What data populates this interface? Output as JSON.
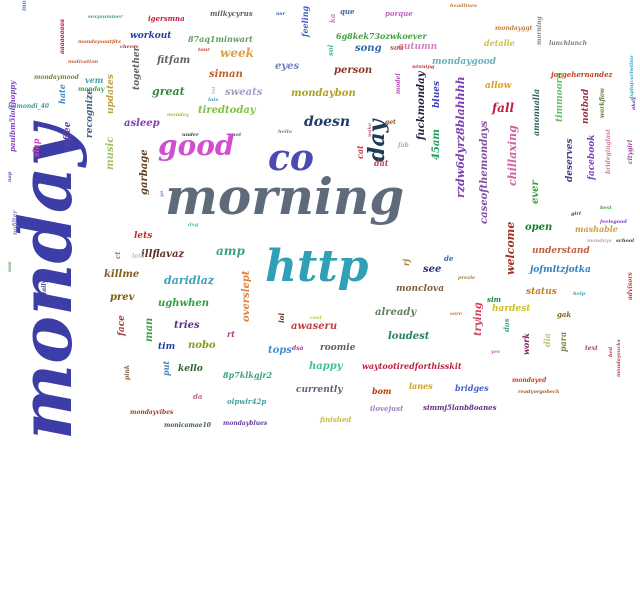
{
  "words": [
    {
      "text": "monday",
      "color": "#3d3da8"
    },
    {
      "text": "morning",
      "color": "#5f6b7a"
    },
    {
      "text": "http",
      "color": "#2fa0b5"
    },
    {
      "text": "co",
      "color": "#4a4ab0"
    },
    {
      "text": "good",
      "color": "#cf4fd0"
    },
    {
      "text": "day",
      "color": "#1c3d5a"
    },
    {
      "text": "doesn",
      "color": "#1c3a6a"
    },
    {
      "text": "week",
      "color": "#d8a048"
    },
    {
      "text": "person",
      "color": "#8a3a2a"
    },
    {
      "text": "song",
      "color": "#2a6ab0"
    },
    {
      "text": "autumn",
      "color": "#d080c0"
    },
    {
      "text": "mondaygood",
      "color": "#6ab0c0"
    },
    {
      "text": "mondaybon",
      "color": "#b0a020"
    },
    {
      "text": "eyes",
      "color": "#7080c0"
    },
    {
      "text": "fitfam",
      "color": "#606060"
    },
    {
      "text": "great",
      "color": "#3a8a3a"
    },
    {
      "text": "sweats",
      "color": "#a0a0c0"
    },
    {
      "text": "tiredtoday",
      "color": "#80c040"
    },
    {
      "text": "asleep",
      "color": "#8040b0"
    },
    {
      "text": "siman",
      "color": "#c06020"
    },
    {
      "text": "workout",
      "color": "#2040a0"
    },
    {
      "text": "fall",
      "color": "#c02040"
    },
    {
      "text": "blues",
      "color": "#4040c0"
    },
    {
      "text": "allow",
      "color": "#e0a020"
    },
    {
      "text": "detalle",
      "color": "#d0c040"
    },
    {
      "text": "welcome",
      "color": "#a03020"
    },
    {
      "text": "open",
      "color": "#108030"
    },
    {
      "text": "understand",
      "color": "#c06040"
    },
    {
      "text": "jofmltzjotka",
      "color": "#3080c0"
    },
    {
      "text": "status",
      "color": "#c08020"
    },
    {
      "text": "hardest",
      "color": "#d0c020"
    },
    {
      "text": "see",
      "color": "#303080"
    },
    {
      "text": "monclova",
      "color": "#806040"
    },
    {
      "text": "already",
      "color": "#608060"
    },
    {
      "text": "loudest",
      "color": "#208060"
    },
    {
      "text": "awaseru",
      "color": "#c04040"
    },
    {
      "text": "roomie",
      "color": "#606060"
    },
    {
      "text": "waytootiredforthisskit",
      "color": "#c02040"
    },
    {
      "text": "amp",
      "color": "#40a080"
    },
    {
      "text": "daridlaz",
      "color": "#40a0c0"
    },
    {
      "text": "ughwhen",
      "color": "#30a040"
    },
    {
      "text": "killme",
      "color": "#806020"
    },
    {
      "text": "prev",
      "color": "#806000"
    },
    {
      "text": "lets",
      "color": "#c03020"
    },
    {
      "text": "illflavaz",
      "color": "#603020"
    },
    {
      "text": "tries",
      "color": "#603080"
    },
    {
      "text": "nobo",
      "color": "#80a020"
    },
    {
      "text": "kello",
      "color": "#306030"
    },
    {
      "text": "tim",
      "color": "#2040a0"
    },
    {
      "text": "tops",
      "color": "#4090d0"
    },
    {
      "text": "happy",
      "color": "#40c0a0"
    },
    {
      "text": "currently",
      "color": "#606080"
    },
    {
      "text": "bom",
      "color": "#c03000"
    },
    {
      "text": "lanes",
      "color": "#d0a020"
    },
    {
      "text": "bridges",
      "color": "#4060c0"
    },
    {
      "text": "ilovejust",
      "color": "#a080c0"
    },
    {
      "text": "simmj5lanb8oanes",
      "color": "#603080"
    },
    {
      "text": "8p7klkgjr2",
      "color": "#40a080"
    },
    {
      "text": "olpwlr42p",
      "color": "#40a0a0"
    },
    {
      "text": "finished",
      "color": "#c0c040"
    },
    {
      "text": "mondayed",
      "color": "#c04020"
    },
    {
      "text": "caseofthemondays",
      "color": "#8050a0"
    },
    {
      "text": "rzdw6dyrz8blahhhh",
      "color": "#8040b0"
    },
    {
      "text": "fuckmonday",
      "color": "#202040"
    },
    {
      "text": "45am",
      "color": "#20a060"
    },
    {
      "text": "chillaxing",
      "color": "#d060a0"
    },
    {
      "text": "ever",
      "color": "#40a040"
    },
    {
      "text": "deserves",
      "color": "#404080"
    },
    {
      "text": "facebook",
      "color": "#8040c0"
    },
    {
      "text": "notbad",
      "color": "#a03040"
    },
    {
      "text": "timmoore",
      "color": "#60c060"
    },
    {
      "text": "amonualla",
      "color": "#306060"
    },
    {
      "text": "mashable",
      "color": "#d0a040"
    },
    {
      "text": "overslept",
      "color": "#e08040"
    },
    {
      "text": "trying",
      "color": "#d04060"
    },
    {
      "text": "jorgehernandez",
      "color": "#c04020"
    },
    {
      "text": "6g8kek73ozwkoever",
      "color": "#40a040"
    },
    {
      "text": "87aq1minwart",
      "color": "#60a060"
    },
    {
      "text": "milkycyrus",
      "color": "#606060"
    },
    {
      "text": "igersmna",
      "color": "#c02040"
    },
    {
      "text": "porque",
      "color": "#c060c0"
    },
    {
      "text": "feeling",
      "color": "#4060c0"
    },
    {
      "text": "mondayggt",
      "color": "#c08040"
    },
    {
      "text": "recognize",
      "color": "#406080"
    },
    {
      "text": "coffee",
      "color": "#6040a0"
    },
    {
      "text": "music",
      "color": "#a0c060"
    },
    {
      "text": "garbage",
      "color": "#604020"
    },
    {
      "text": "updates",
      "color": "#c0a040"
    },
    {
      "text": "together",
      "color": "#606060"
    },
    {
      "text": "vem",
      "color": "#40a0a0"
    },
    {
      "text": "slap",
      "color": "#d040c0"
    },
    {
      "text": "man",
      "color": "#40a040"
    },
    {
      "text": "face",
      "color": "#a04040"
    },
    {
      "text": "work",
      "color": "#802060"
    },
    {
      "text": "dia",
      "color": "#c0c080"
    },
    {
      "text": "para",
      "color": "#808040"
    },
    {
      "text": "cat",
      "color": "#c04040"
    },
    {
      "text": "lol",
      "color": "#603020"
    },
    {
      "text": "rt",
      "color": "#a04080"
    },
    {
      "text": "put",
      "color": "#4080c0"
    },
    {
      "text": "da",
      "color": "#c06080"
    },
    {
      "text": "dos",
      "color": "#40a080"
    },
    {
      "text": "gak",
      "color": "#806020"
    },
    {
      "text": "sol",
      "color": "#40c080"
    },
    {
      "text": "ka",
      "color": "#c080c0"
    },
    {
      "text": "que",
      "color": "#4060a0"
    },
    {
      "text": "rj",
      "color": "#a08040"
    },
    {
      "text": "de",
      "color": "#4060c0"
    },
    {
      "text": "dat",
      "color": "#c04060"
    },
    {
      "text": "sou",
      "color": "#c06040"
    },
    {
      "text": "sim",
      "color": "#208040"
    },
    {
      "text": "dsa",
      "color": "#a040a0"
    },
    {
      "text": "ct",
      "color": "#a08060"
    },
    {
      "text": "lets",
      "color": "#c0c0c0"
    },
    {
      "text": "nofilter",
      "color": "#8080c0"
    },
    {
      "text": "mondayvibes",
      "color": "#a04020"
    },
    {
      "text": "readyorgobeck",
      "color": "#a06020"
    },
    {
      "text": "mondaymotivation",
      "color": "#6080c0"
    },
    {
      "text": "mondayblues",
      "color": "#6040a0"
    },
    {
      "text": "monicamae10",
      "color": "#406040"
    },
    {
      "text": "pink",
      "color": "#806040"
    },
    {
      "text": "workflow",
      "color": "#608040"
    },
    {
      "text": "citygirl",
      "color": "#a040a0"
    },
    {
      "text": "brideginglast",
      "color": "#d080a0"
    },
    {
      "text": "advisors",
      "color": "#c04040"
    },
    {
      "text": "paulbm5lolthoppy",
      "color": "#8040c0"
    },
    {
      "text": "mondaysoutfits",
      "color": "#c06020"
    },
    {
      "text": "lunchlunch",
      "color": "#808080"
    },
    {
      "text": "sexysummer",
      "color": "#40a080"
    },
    {
      "text": "aaaaaaaaa",
      "color": "#a02040"
    },
    {
      "text": "mondaysucks",
      "color": "#c04060"
    },
    {
      "text": "mondaymood",
      "color": "#808040"
    },
    {
      "text": "motivation",
      "color": "#c06040"
    },
    {
      "text": "monday",
      "color": "#40a040"
    },
    {
      "text": "hate",
      "color": "#4080c0"
    },
    {
      "text": "lolmondi_40",
      "color": "#40a0a0"
    },
    {
      "text": "lots",
      "color": "#40a0c0"
    },
    {
      "text": "prezle",
      "color": "#a08040"
    },
    {
      "text": "monday",
      "color": "#a0c040"
    },
    {
      "text": "yes",
      "color": "#c060c0"
    },
    {
      "text": "get",
      "color": "#a04020"
    },
    {
      "text": "usr",
      "color": "#4060a0"
    },
    {
      "text": "tour",
      "color": "#c04040"
    },
    {
      "text": "okay",
      "color": "#6040a0"
    },
    {
      "text": "girl",
      "color": "#604040"
    },
    {
      "text": "mondays",
      "color": "#c0a0c0"
    },
    {
      "text": "school",
      "color": "#404040"
    },
    {
      "text": "best",
      "color": "#40a040"
    },
    {
      "text": "help",
      "color": "#40a0c0"
    },
    {
      "text": "text",
      "color": "#a04040"
    },
    {
      "text": "winnipg",
      "color": "#c04040"
    },
    {
      "text": "cool",
      "color": "#c0c040"
    },
    {
      "text": "model",
      "color": "#c040c0"
    },
    {
      "text": "sore",
      "color": "#c08040"
    },
    {
      "text": "under",
      "color": "#404040"
    },
    {
      "text": "cheers",
      "color": "#a04040"
    },
    {
      "text": "ini",
      "color": "#c0c080"
    },
    {
      "text": "not",
      "color": "#606060"
    },
    {
      "text": "hello",
      "color": "#808080"
    },
    {
      "text": "yo",
      "color": "#8080c0"
    },
    {
      "text": "dog",
      "color": "#60c0a0"
    },
    {
      "text": "fab",
      "color": "#c0a0c0"
    },
    {
      "text": "feelsgood",
      "color": "#8040c0"
    },
    {
      "text": "headlines",
      "color": "#c08040"
    },
    {
      "text": "morning",
      "color": "#808080"
    },
    {
      "text": "wake",
      "color": "#c06080"
    },
    {
      "text": "nap",
      "color": "#4060c0"
    },
    {
      "text": "saw",
      "color": "#60a060"
    },
    {
      "text": "bed",
      "color": "#c04040"
    },
    {
      "text": "daily",
      "color": "#4040a0"
    },
    {
      "text": "dxplnjcurlwtlmr",
      "color": "#40a0c0"
    },
    {
      "text": "amazing",
      "color": "#c0a060"
    },
    {
      "text": "kroll",
      "color": "#808040"
    },
    {
      "text": "ucilbe4mo",
      "color": "#a040c0"
    },
    {
      "text": "instagramfollow",
      "color": "#80a040"
    },
    {
      "text": "c1mhnbwrn",
      "color": "#606060"
    },
    {
      "text": "tapemon",
      "color": "#a0a060"
    },
    {
      "text": "goodmornings",
      "color": "#c080c0"
    }
  ]
}
